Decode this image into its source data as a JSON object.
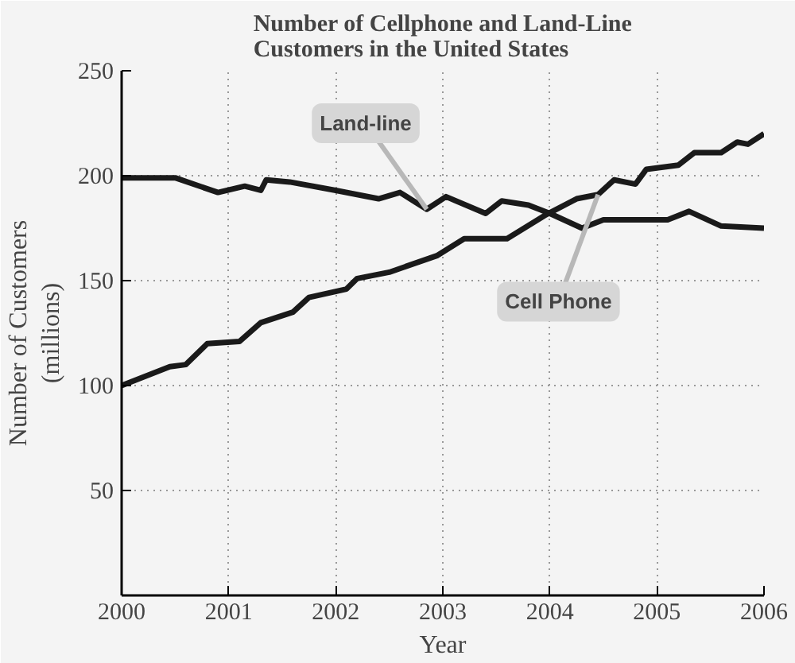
{
  "chart_data": {
    "type": "line",
    "title": "Number of Cellphone and Land-Line\nCustomers in the United States",
    "xlabel": "Year",
    "ylabel": "Number of Customers\n(millions)",
    "xlim": [
      2000,
      2006
    ],
    "xticks": [
      2000,
      2001,
      2002,
      2003,
      2004,
      2005,
      2006
    ],
    "ylim": [
      0,
      250
    ],
    "yticks": [
      50,
      100,
      150,
      200,
      250
    ],
    "grid": true,
    "marker": "none",
    "line_style": "solid",
    "series": [
      {
        "name": "Land-line",
        "color": "#1a1a1a",
        "x": [
          2000,
          2000.5,
          2000.9,
          2001.15,
          2001.3,
          2001.35,
          2001.57,
          2002.0,
          2002.4,
          2002.6,
          2002.85,
          2003.03,
          2003.4,
          2003.55,
          2003.8,
          2004.0,
          2004.3,
          2004.5,
          2005.1,
          2005.3,
          2005.6,
          2006
        ],
        "values": [
          199,
          199,
          192,
          195,
          193,
          198,
          197,
          193,
          189,
          192,
          184,
          190,
          182,
          188,
          186,
          182,
          175,
          179,
          179,
          183,
          176,
          175
        ]
      },
      {
        "name": "Cell Phone",
        "color": "#1a1a1a",
        "x": [
          2000,
          2000.45,
          2000.6,
          2000.8,
          2001.1,
          2001.3,
          2001.6,
          2001.75,
          2002.1,
          2002.2,
          2002.5,
          2002.95,
          2003.2,
          2003.6,
          2003.95,
          2004.25,
          2004.45,
          2004.6,
          2004.8,
          2004.9,
          2005.2,
          2005.35,
          2005.6,
          2005.75,
          2005.85,
          2006
        ],
        "values": [
          100,
          109,
          110,
          120,
          121,
          130,
          135,
          142,
          146,
          151,
          154,
          162,
          170,
          170,
          181,
          189,
          191,
          198,
          196,
          203,
          205,
          211,
          211,
          216,
          215,
          220
        ]
      }
    ]
  }
}
